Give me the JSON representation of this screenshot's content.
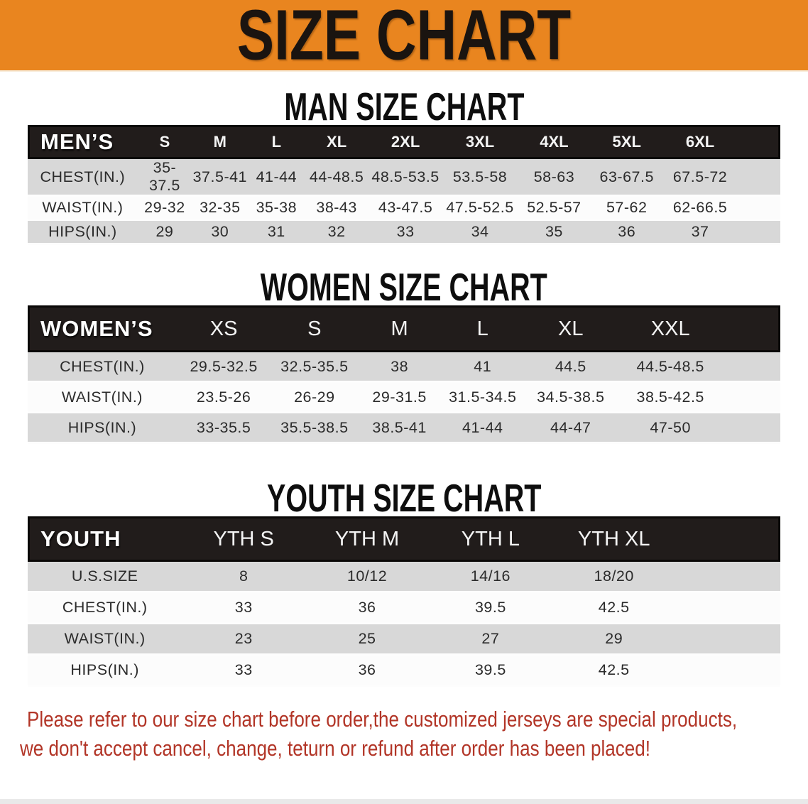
{
  "banner": {
    "title": "SIZE CHART"
  },
  "colors": {
    "banner_bg": "#e9851f",
    "header_bar_bg": "#211c1b",
    "row_gray": "#d8d8d8",
    "row_white": "#fcfcfc",
    "note_red": "#b23527",
    "title_text": "#1a1410"
  },
  "men": {
    "heading": "MAN SIZE CHART",
    "label": "MEN’S",
    "sizes": [
      "S",
      "M",
      "L",
      "XL",
      "2XL",
      "3XL",
      "4XL",
      "5XL",
      "6XL"
    ],
    "rows": [
      {
        "label": "CHEST(IN.)",
        "values": [
          "35-37.5",
          "37.5-41",
          "41-44",
          "44-48.5",
          "48.5-53.5",
          "53.5-58",
          "58-63",
          "63-67.5",
          "67.5-72"
        ]
      },
      {
        "label": "WAIST(IN.)",
        "values": [
          "29-32",
          "32-35",
          "35-38",
          "38-43",
          "43-47.5",
          "47.5-52.5",
          "52.5-57",
          "57-62",
          "62-66.5"
        ]
      },
      {
        "label": "HIPS(IN.)",
        "values": [
          "29",
          "30",
          "31",
          "32",
          "33",
          "34",
          "35",
          "36",
          "37"
        ]
      }
    ]
  },
  "women": {
    "heading": "WOMEN SIZE CHART",
    "label": "WOMEN’S",
    "sizes": [
      "XS",
      "S",
      "M",
      "L",
      "XL",
      "XXL"
    ],
    "rows": [
      {
        "label": "CHEST(IN.)",
        "values": [
          "29.5-32.5",
          "32.5-35.5",
          "38",
          "41",
          "44.5",
          "44.5-48.5"
        ]
      },
      {
        "label": "WAIST(IN.)",
        "values": [
          "23.5-26",
          "26-29",
          "29-31.5",
          "31.5-34.5",
          "34.5-38.5",
          "38.5-42.5"
        ]
      },
      {
        "label": "HIPS(IN.)",
        "values": [
          "33-35.5",
          "35.5-38.5",
          "38.5-41",
          "41-44",
          "44-47",
          "47-50"
        ]
      }
    ]
  },
  "youth": {
    "heading": "YOUTH SIZE CHART",
    "label": "YOUTH",
    "sizes": [
      "YTH S",
      "YTH M",
      "YTH L",
      "YTH XL"
    ],
    "rows": [
      {
        "label": "U.S.SIZE",
        "values": [
          "8",
          "10/12",
          "14/16",
          "18/20"
        ]
      },
      {
        "label": "CHEST(IN.)",
        "values": [
          "33",
          "36",
          "39.5",
          "42.5"
        ]
      },
      {
        "label": "WAIST(IN.)",
        "values": [
          "23",
          "25",
          "27",
          "29"
        ]
      },
      {
        "label": "HIPS(IN.)",
        "values": [
          "33",
          "36",
          "39.5",
          "42.5"
        ]
      }
    ]
  },
  "note": {
    "line1": "Please refer to our size chart before order,the customized jerseys are special products,",
    "line2": "we don't accept cancel, change, teturn or refund after order has been placed!"
  }
}
